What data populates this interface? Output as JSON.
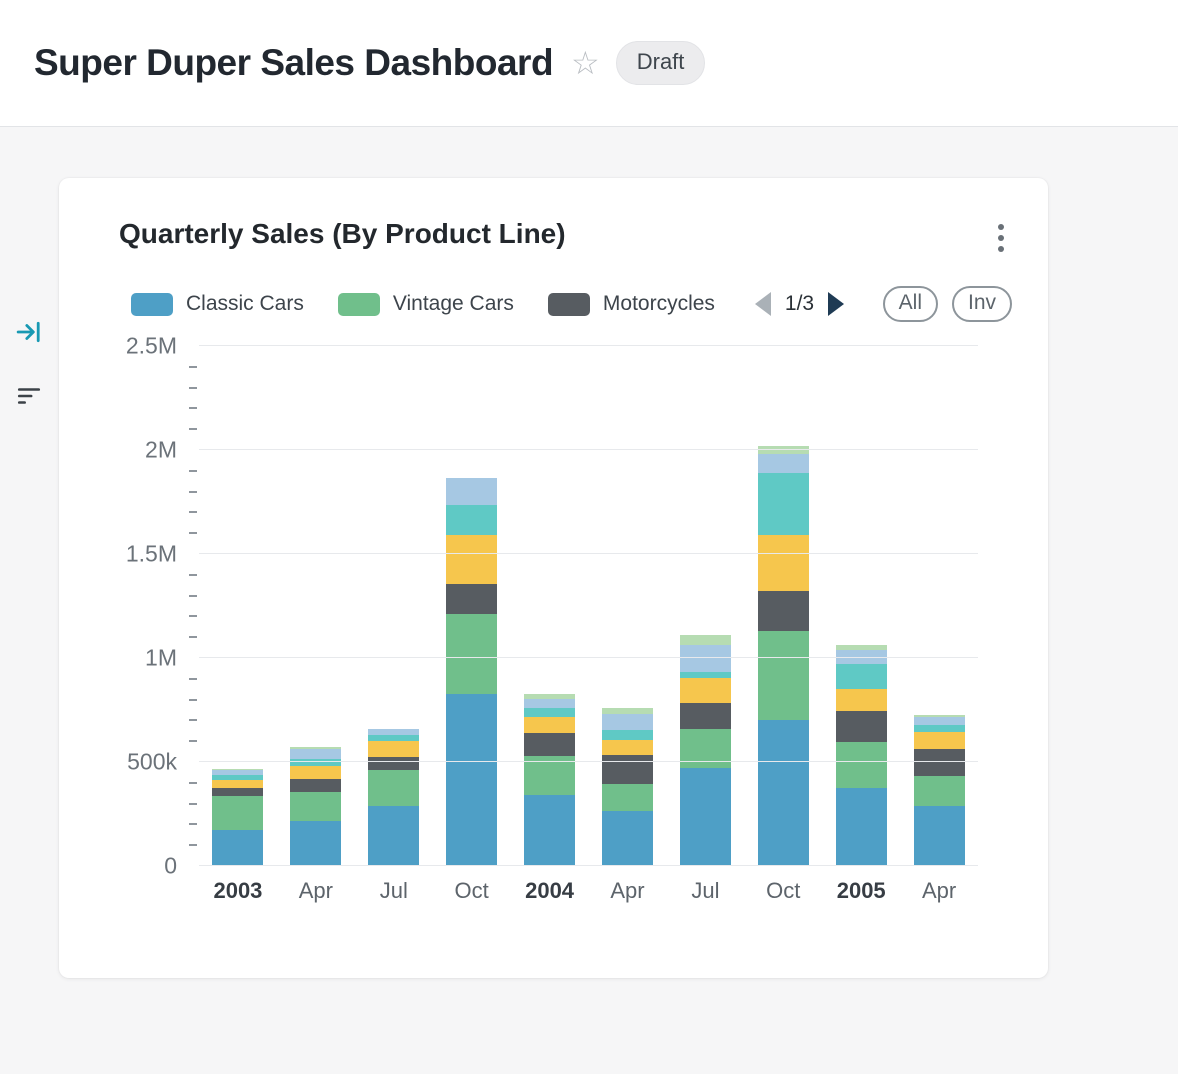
{
  "header": {
    "title": "Super Duper Sales Dashboard",
    "badge": "Draft"
  },
  "card": {
    "title": "Quarterly Sales (By Product Line)"
  },
  "legend": {
    "items": [
      {
        "label": "Classic Cars",
        "color": "#4e9fc6"
      },
      {
        "label": "Vintage Cars",
        "color": "#70bf8b"
      },
      {
        "label": "Motorcycles",
        "color": "#575c61"
      }
    ],
    "pager": {
      "label": "1/3"
    },
    "buttons": [
      {
        "label": "All"
      },
      {
        "label": "Inv"
      }
    ]
  },
  "icons": {
    "star": "☆"
  },
  "chart_data": {
    "type": "bar",
    "stacked": true,
    "title": "Quarterly Sales (By Product Line)",
    "xlabel": "",
    "ylabel": "",
    "ylim": [
      0,
      2500000
    ],
    "minor_tick_step": 100000,
    "grid": true,
    "legend_position": "top",
    "legend_page": "1/3",
    "y_ticks": [
      {
        "label": "0",
        "value": 0
      },
      {
        "label": "500k",
        "value": 500000
      },
      {
        "label": "1M",
        "value": 1000000
      },
      {
        "label": "1.5M",
        "value": 1500000
      },
      {
        "label": "2M",
        "value": 2000000
      },
      {
        "label": "2.5M",
        "value": 2500000
      }
    ],
    "categories": [
      {
        "label": "2003",
        "bold": true
      },
      {
        "label": "Apr",
        "bold": false
      },
      {
        "label": "Jul",
        "bold": false
      },
      {
        "label": "Oct",
        "bold": false
      },
      {
        "label": "2004",
        "bold": true
      },
      {
        "label": "Apr",
        "bold": false
      },
      {
        "label": "Jul",
        "bold": false
      },
      {
        "label": "Oct",
        "bold": false
      },
      {
        "label": "2005",
        "bold": true
      },
      {
        "label": "Apr",
        "bold": false
      }
    ],
    "series": [
      {
        "name": "Classic Cars",
        "color": "#4e9fc6",
        "values": [
          175000,
          215000,
          290000,
          825000,
          340000,
          265000,
          470000,
          700000,
          375000,
          290000
        ]
      },
      {
        "name": "Vintage Cars",
        "color": "#70bf8b",
        "values": [
          160000,
          140000,
          170000,
          385000,
          190000,
          130000,
          190000,
          430000,
          220000,
          145000
        ]
      },
      {
        "name": "Motorcycles",
        "color": "#575c61",
        "values": [
          40000,
          62000,
          63000,
          145000,
          110000,
          140000,
          125000,
          190000,
          150000,
          130000
        ]
      },
      {
        "name": "Unlabeled (yellow)",
        "color": "#f6c64d",
        "values": [
          40000,
          63000,
          77000,
          235000,
          77000,
          72000,
          120000,
          270000,
          105000,
          77000
        ]
      },
      {
        "name": "Unlabeled (teal)",
        "color": "#5fc9c5",
        "values": [
          25000,
          34000,
          29000,
          145000,
          43000,
          48000,
          29000,
          300000,
          120000,
          38000
        ]
      },
      {
        "name": "Unlabeled (light blue)",
        "color": "#a6c8e3",
        "values": [
          20000,
          48000,
          29000,
          130000,
          43000,
          77000,
          128000,
          90000,
          67000,
          38000
        ]
      },
      {
        "name": "Unlabeled (light green)",
        "color": "#b6dcb2",
        "values": [
          5000,
          10000,
          0,
          0,
          24000,
          29000,
          48000,
          40000,
          24000,
          10000
        ]
      }
    ]
  }
}
